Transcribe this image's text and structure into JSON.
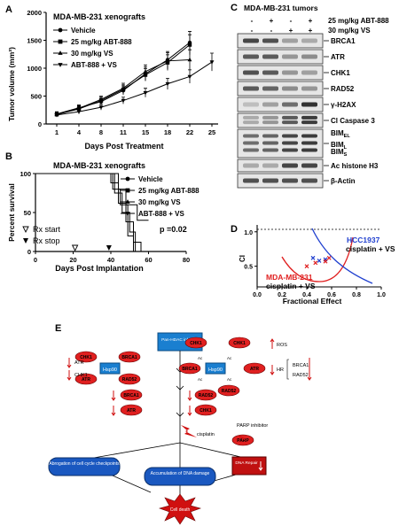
{
  "panel_a": {
    "letter": "A",
    "chart_data": {
      "type": "line",
      "title": "MDA-MB-231 xenografts",
      "xlabel": "Days Post Treatment",
      "ylabel": "Tumor volume (mm³)",
      "x_ticks": [
        "1",
        "4",
        "8",
        "11",
        "15",
        "18",
        "22",
        "25"
      ],
      "y_ticks": [
        "0",
        "500",
        "1000",
        "1500",
        "2000"
      ],
      "ylim": [
        0,
        2000
      ],
      "series": [
        {
          "name": "Vehicle",
          "marker": "circle",
          "x": [
            1,
            4,
            8,
            11,
            15,
            18,
            22
          ],
          "y": [
            180,
            290,
            400,
            600,
            900,
            1150,
            1460
          ],
          "err": [
            40,
            50,
            60,
            80,
            120,
            150,
            200
          ]
        },
        {
          "name": "25 mg/kg ABT-888",
          "marker": "square",
          "x": [
            1,
            4,
            8,
            11,
            15,
            18,
            22
          ],
          "y": [
            170,
            270,
            420,
            620,
            880,
            1100,
            1420
          ],
          "err": [
            40,
            50,
            60,
            80,
            110,
            140,
            180
          ]
        },
        {
          "name": "30 mg/kg VS",
          "marker": "triangle",
          "x": [
            1,
            4,
            8,
            11,
            15,
            18,
            22
          ],
          "y": [
            175,
            280,
            440,
            640,
            940,
            1130,
            1150
          ],
          "err": [
            40,
            50,
            60,
            90,
            120,
            150,
            180
          ]
        },
        {
          "name": "ABT-888 + VS",
          "marker": "triangle-down",
          "x": [
            1,
            4,
            8,
            11,
            15,
            18,
            22,
            25
          ],
          "y": [
            160,
            220,
            300,
            420,
            560,
            720,
            850,
            1110
          ],
          "err": [
            30,
            40,
            50,
            60,
            80,
            100,
            120,
            160
          ]
        }
      ]
    }
  },
  "panel_b": {
    "letter": "B",
    "chart_data": {
      "type": "line",
      "title": "MDA-MB-231 xenografts",
      "xlabel": "Days Post Implantation",
      "ylabel": "Percent survival",
      "x_ticks": [
        "0",
        "20",
        "40",
        "60",
        "80"
      ],
      "y_ticks": [
        "0",
        "50",
        "100"
      ],
      "xlim": [
        0,
        80
      ],
      "ylim": [
        0,
        100
      ],
      "pvalue": "p =0.02",
      "rx_start_label": "Rx start",
      "rx_stop_label": "Rx stop",
      "rx_start_day": 21,
      "rx_stop_day": 39,
      "series": [
        {
          "name": "Vehicle",
          "marker": "circle",
          "steps": [
            [
              0,
              100
            ],
            [
              40,
              100
            ],
            [
              40,
              88
            ],
            [
              44,
              88
            ],
            [
              44,
              62
            ],
            [
              48,
              62
            ],
            [
              48,
              38
            ],
            [
              52,
              38
            ],
            [
              52,
              12
            ],
            [
              56,
              12
            ],
            [
              56,
              0
            ],
            [
              58,
              0
            ]
          ]
        },
        {
          "name": "25 mg/kg ABT-888",
          "marker": "square",
          "steps": [
            [
              0,
              100
            ],
            [
              42,
              100
            ],
            [
              42,
              75
            ],
            [
              46,
              75
            ],
            [
              46,
              50
            ],
            [
              50,
              50
            ],
            [
              50,
              25
            ],
            [
              53,
              25
            ],
            [
              53,
              0
            ],
            [
              56,
              0
            ]
          ]
        },
        {
          "name": "30 mg/kg VS",
          "marker": "triangle",
          "steps": [
            [
              0,
              100
            ],
            [
              41,
              100
            ],
            [
              41,
              80
            ],
            [
              45,
              80
            ],
            [
              45,
              60
            ],
            [
              49,
              60
            ],
            [
              49,
              20
            ],
            [
              52,
              20
            ],
            [
              52,
              0
            ],
            [
              54,
              0
            ]
          ]
        },
        {
          "name": "ABT-888 + VS",
          "marker": "triangle-down",
          "steps": [
            [
              0,
              100
            ],
            [
              44,
              100
            ],
            [
              44,
              80
            ],
            [
              48,
              80
            ],
            [
              48,
              60
            ],
            [
              54,
              60
            ],
            [
              54,
              40
            ],
            [
              60,
              40
            ]
          ]
        }
      ]
    }
  },
  "panel_c": {
    "letter": "C",
    "title": "MDA-MB-231 tumors",
    "conditions": [
      {
        "label": "25 mg/kg ABT-888",
        "signs": [
          "-",
          "+",
          "-",
          "+"
        ]
      },
      {
        "label": "30 mg/kg VS",
        "signs": [
          "-",
          "-",
          "+",
          "+"
        ]
      }
    ],
    "blots": [
      {
        "label": "BRCA1",
        "intensity": [
          0.8,
          0.75,
          0.35,
          0.3
        ]
      },
      {
        "label": "ATR",
        "intensity": [
          0.7,
          0.7,
          0.4,
          0.45
        ]
      },
      {
        "label": "CHK1",
        "intensity": [
          0.75,
          0.7,
          0.4,
          0.35
        ]
      },
      {
        "label": "RAD52",
        "intensity": [
          0.7,
          0.65,
          0.45,
          0.4
        ]
      },
      {
        "label": "γ-H2AX",
        "intensity": [
          0.2,
          0.35,
          0.6,
          0.9
        ]
      },
      {
        "label": "Cl Caspase 3",
        "intensity": [
          0.3,
          0.4,
          0.7,
          0.85
        ]
      },
      {
        "label": "BIM",
        "intensity": [
          0.6,
          0.65,
          0.8,
          0.85
        ]
      },
      {
        "label": "Ac histone H3",
        "intensity": [
          0.3,
          0.3,
          0.8,
          0.8
        ]
      },
      {
        "label": "β-Actin",
        "intensity": [
          0.75,
          0.75,
          0.75,
          0.75
        ]
      }
    ],
    "bim_labels": {
      "el": "BIM",
      "el_sub": "EL",
      "l": "BIM",
      "l_sub": "L",
      "s": "BIM",
      "s_sub": "S"
    }
  },
  "panel_d": {
    "letter": "D",
    "chart_data": {
      "type": "scatter",
      "xlabel": "Fractional Effect",
      "ylabel": "CI",
      "x_ticks": [
        "0.0",
        "0.2",
        "0.4",
        "0.6",
        "0.8",
        "1.0"
      ],
      "y_ticks": [
        "0.5",
        "1.0"
      ],
      "xlim": [
        0,
        1
      ],
      "ylim": [
        0.2,
        1.1
      ],
      "series": [
        {
          "name": "HCC1937",
          "subtitle": "cisplatin + VS",
          "color": "#1f3fcf",
          "points": [
            [
              0.45,
              0.62
            ],
            [
              0.5,
              0.58
            ],
            [
              0.55,
              0.6
            ]
          ]
        },
        {
          "name": "MDA-MB-231",
          "subtitle": "cisplatin + VS",
          "color": "#e02020",
          "points": [
            [
              0.4,
              0.5
            ],
            [
              0.47,
              0.55
            ],
            [
              0.55,
              0.57
            ],
            [
              0.58,
              0.62
            ]
          ]
        }
      ]
    }
  },
  "panel_e": {
    "letter": "E",
    "drug": "Pan-HDAC inhibitor",
    "hsp90": "Hsp90",
    "ac": "Ac",
    "client_proteins": [
      "CHK1",
      "BRCA1",
      "ATR",
      "RAD52"
    ],
    "after_proteins_left": [
      "BRCA1",
      "ATR"
    ],
    "after_proteins_right": [
      "RAD52",
      "CHK1"
    ],
    "side_left": [
      "ATR",
      "CHK1"
    ],
    "ros": "ROS",
    "hr": "HR",
    "hr_proteins": [
      "BRCA1",
      "RAD52"
    ],
    "cisplatin": "cisplatin",
    "parp_label": "PARP inhibitor",
    "parp": "PARP",
    "abrogation": "Abrogation of cell cycle checkpoints",
    "accumulation": "Accumulation of DNA damage",
    "dna_repair": "DNA Repair",
    "cell_death": "Cell death"
  }
}
